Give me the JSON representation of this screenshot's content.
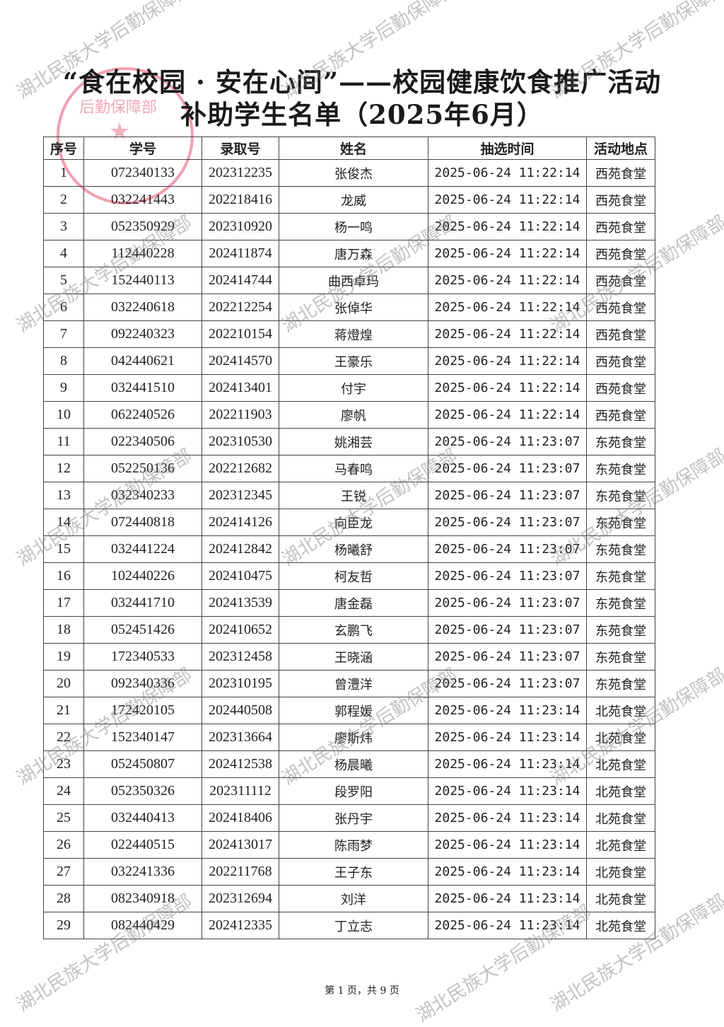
{
  "title_line1": "“食在校园 · 安在心间”——校园健康饮食推广活动",
  "title_line2": "补助学生名单（2025年6月）",
  "stamp_text": "湖北民族大学后勤保障部",
  "watermark": "湖北民族大学后勤保障部",
  "headers": [
    "序号",
    "学号",
    "录取号",
    "姓名",
    "抽选时间",
    "活动地点"
  ],
  "rows": [
    [
      "1",
      "072340133",
      "202312235",
      "张俊杰",
      "2025-06-24 11:22:14",
      "西苑食堂"
    ],
    [
      "2",
      "032241443",
      "202218416",
      "龙威",
      "2025-06-24 11:22:14",
      "西苑食堂"
    ],
    [
      "3",
      "052350929",
      "202310920",
      "杨一鸣",
      "2025-06-24 11:22:14",
      "西苑食堂"
    ],
    [
      "4",
      "112440228",
      "202411874",
      "唐万森",
      "2025-06-24 11:22:14",
      "西苑食堂"
    ],
    [
      "5",
      "152440113",
      "202414744",
      "曲西卓玛",
      "2025-06-24 11:22:14",
      "西苑食堂"
    ],
    [
      "6",
      "032240618",
      "202212254",
      "张倬华",
      "2025-06-24 11:22:14",
      "西苑食堂"
    ],
    [
      "7",
      "092240323",
      "202210154",
      "蒋燈煌",
      "2025-06-24 11:22:14",
      "西苑食堂"
    ],
    [
      "8",
      "042440621",
      "202414570",
      "王豪乐",
      "2025-06-24 11:22:14",
      "西苑食堂"
    ],
    [
      "9",
      "032441510",
      "202413401",
      "付宇",
      "2025-06-24 11:22:14",
      "西苑食堂"
    ],
    [
      "10",
      "062240526",
      "202211903",
      "廖帆",
      "2025-06-24 11:22:14",
      "西苑食堂"
    ],
    [
      "11",
      "022340506",
      "202310530",
      "姚湘芸",
      "2025-06-24 11:23:07",
      "东苑食堂"
    ],
    [
      "12",
      "052250136",
      "202212682",
      "马春鸣",
      "2025-06-24 11:23:07",
      "东苑食堂"
    ],
    [
      "13",
      "032340233",
      "202312345",
      "王锐",
      "2025-06-24 11:23:07",
      "东苑食堂"
    ],
    [
      "14",
      "072440818",
      "202414126",
      "向臣龙",
      "2025-06-24 11:23:07",
      "东苑食堂"
    ],
    [
      "15",
      "032441224",
      "202412842",
      "杨曦舒",
      "2025-06-24 11:23:07",
      "东苑食堂"
    ],
    [
      "16",
      "102440226",
      "202410475",
      "柯友哲",
      "2025-06-24 11:23:07",
      "东苑食堂"
    ],
    [
      "17",
      "032441710",
      "202413539",
      "唐金磊",
      "2025-06-24 11:23:07",
      "东苑食堂"
    ],
    [
      "18",
      "052451426",
      "202410652",
      "玄鹏飞",
      "2025-06-24 11:23:07",
      "东苑食堂"
    ],
    [
      "19",
      "172340533",
      "202312458",
      "王晓涵",
      "2025-06-24 11:23:07",
      "东苑食堂"
    ],
    [
      "20",
      "092340336",
      "202310195",
      "曾澧洋",
      "2025-06-24 11:23:07",
      "东苑食堂"
    ],
    [
      "21",
      "172420105",
      "202440508",
      "郭程媛",
      "2025-06-24 11:23:14",
      "北苑食堂"
    ],
    [
      "22",
      "152340147",
      "202313664",
      "廖斯炜",
      "2025-06-24 11:23:14",
      "北苑食堂"
    ],
    [
      "23",
      "052450807",
      "202412538",
      "杨晨曦",
      "2025-06-24 11:23:14",
      "北苑食堂"
    ],
    [
      "24",
      "052350326",
      "202311112",
      "段罗阳",
      "2025-06-24 11:23:14",
      "北苑食堂"
    ],
    [
      "25",
      "032440413",
      "202418406",
      "张丹宇",
      "2025-06-24 11:23:14",
      "北苑食堂"
    ],
    [
      "26",
      "022440515",
      "202413017",
      "陈雨梦",
      "2025-06-24 11:23:14",
      "北苑食堂"
    ],
    [
      "27",
      "032241336",
      "202211768",
      "王子东",
      "2025-06-24 11:23:14",
      "北苑食堂"
    ],
    [
      "28",
      "082340918",
      "202312694",
      "刘洋",
      "2025-06-24 11:23:14",
      "北苑食堂"
    ],
    [
      "29",
      "082440429",
      "202412335",
      "丁立志",
      "2025-06-24 11:23:14",
      "北苑食堂"
    ]
  ],
  "footer": "第 1 页，共 9 页"
}
